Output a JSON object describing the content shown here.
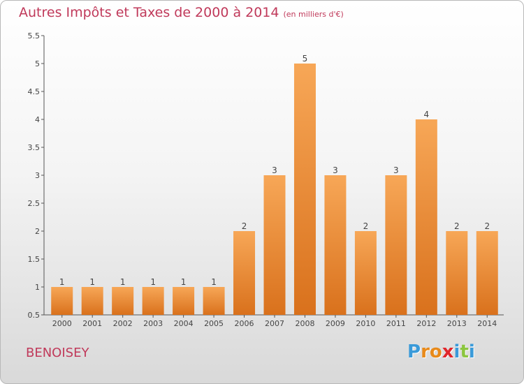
{
  "title": {
    "main": "Autres Impôts et Taxes de 2000 à 2014",
    "unit": "(en milliers d'€)"
  },
  "commune": "BENOISEY",
  "brand": {
    "letters": [
      "P",
      "r",
      "o",
      "x",
      "i",
      "t",
      "i"
    ],
    "colors": [
      "#3a9ad9",
      "#e88a1a",
      "#e88a1a",
      "#e0262b",
      "#3a9ad9",
      "#8cc63f",
      "#3a9ad9"
    ]
  },
  "chart_data": {
    "type": "bar",
    "title": "Autres Impôts et Taxes de 2000 à 2014",
    "subtitle": "(en milliers d'€)",
    "categories": [
      "2000",
      "2001",
      "2002",
      "2003",
      "2004",
      "2005",
      "2006",
      "2007",
      "2008",
      "2009",
      "2010",
      "2011",
      "2012",
      "2013",
      "2014"
    ],
    "values": [
      1,
      1,
      1,
      1,
      1,
      1,
      2,
      3,
      5,
      3,
      2,
      3,
      4,
      2,
      2
    ],
    "ylim": [
      0.5,
      5.5
    ],
    "yticks": [
      0.5,
      1,
      1.5,
      2,
      2.5,
      3,
      3.5,
      4,
      4.5,
      5,
      5.5
    ],
    "grid": false,
    "bar_color": "#e8822a"
  }
}
